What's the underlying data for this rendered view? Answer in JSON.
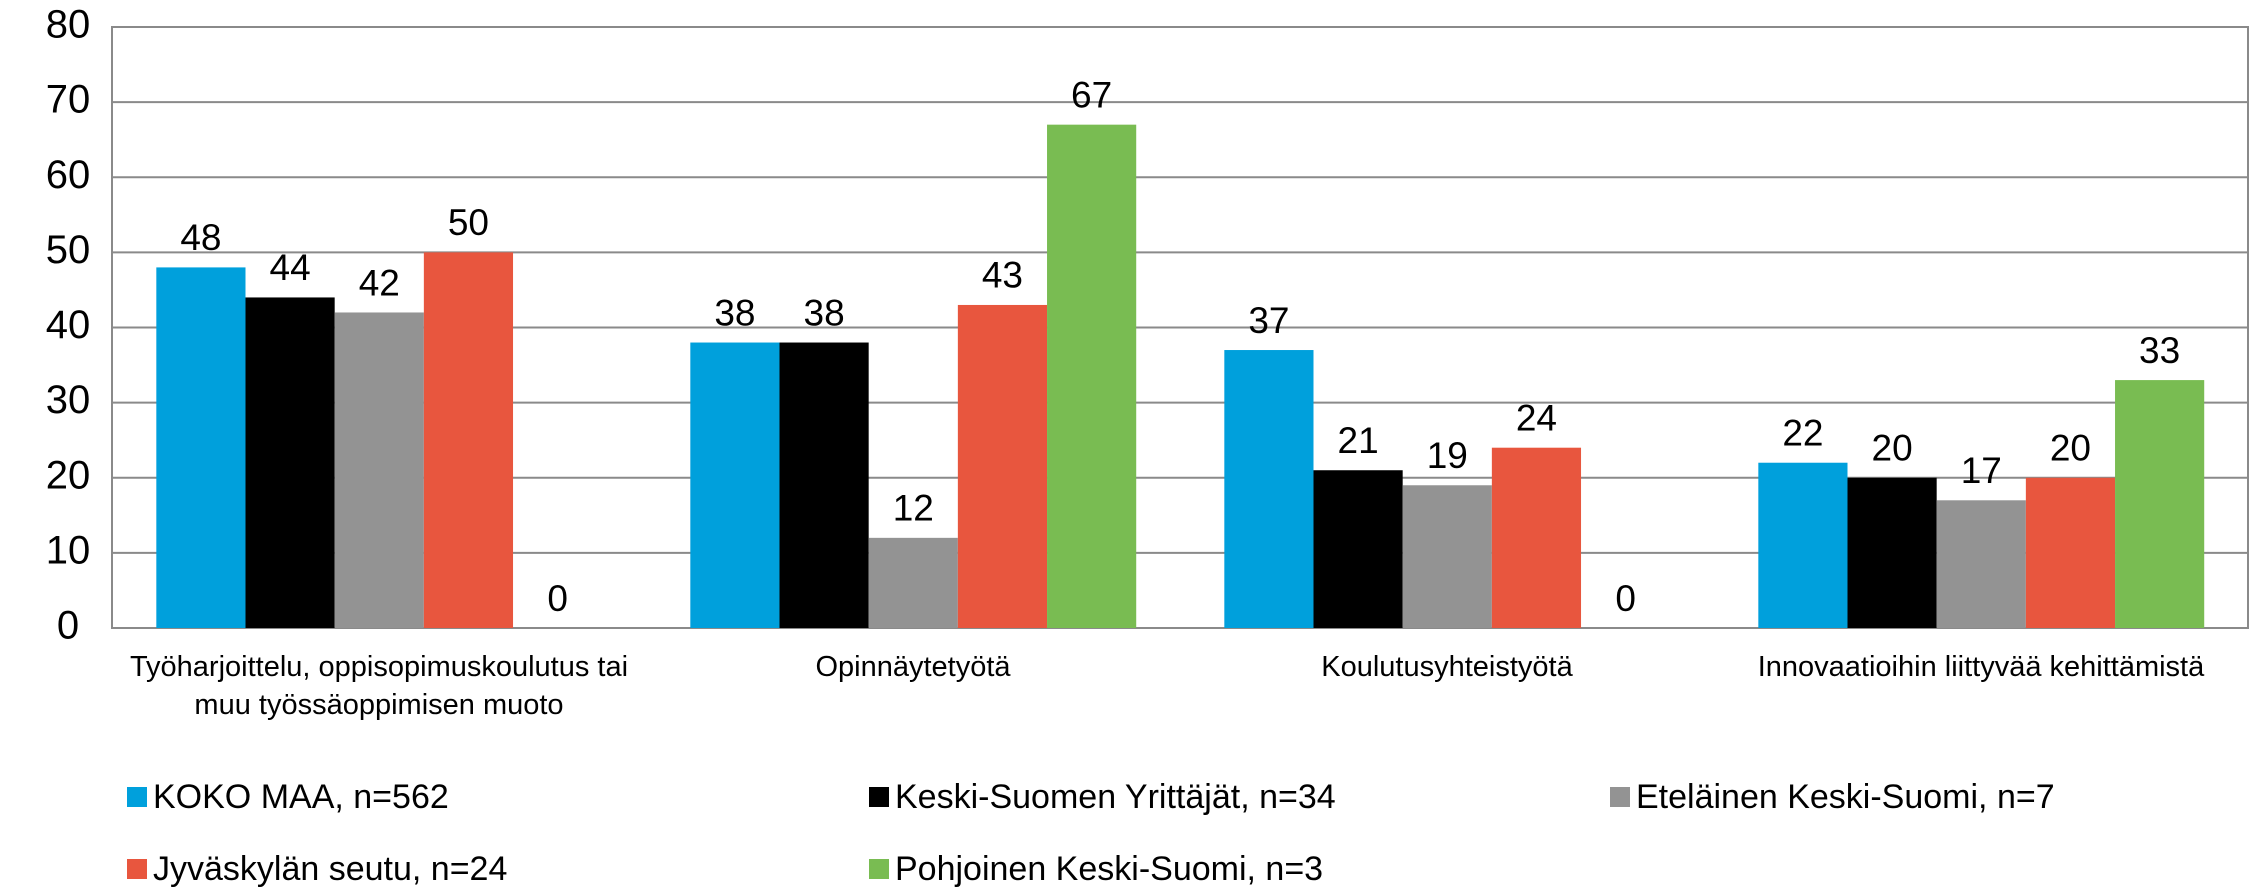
{
  "chart_data": {
    "type": "bar",
    "categories": [
      "Työharjoittelu, oppisopimuskoulutus tai muu työssäoppimisen muoto",
      "Opinnäytetyötä",
      "Koulutusyhteistyötä",
      "Innovaatioihin liittyvää kehittämistä"
    ],
    "series": [
      {
        "name": "KOKO MAA, n=562",
        "color": "#00a0dc",
        "values": [
          48,
          38,
          37,
          22
        ]
      },
      {
        "name": "Keski-Suomen Yrittäjät, n=34",
        "color": "#000000",
        "values": [
          44,
          38,
          21,
          20
        ]
      },
      {
        "name": "Eteläinen Keski-Suomi, n=7",
        "color": "#939393",
        "values": [
          42,
          12,
          19,
          17
        ]
      },
      {
        "name": "Jyväskylän seutu, n=24",
        "color": "#e8563e",
        "values": [
          50,
          43,
          24,
          20
        ]
      },
      {
        "name": "Pohjoinen Keski-Suomi, n=3",
        "color": "#79bc52",
        "values": [
          0,
          67,
          0,
          33
        ]
      }
    ],
    "ylim": [
      0,
      80
    ],
    "yticks": [
      0,
      10,
      20,
      30,
      40,
      50,
      60,
      70,
      80
    ],
    "grid": true,
    "legend": "bottom"
  }
}
